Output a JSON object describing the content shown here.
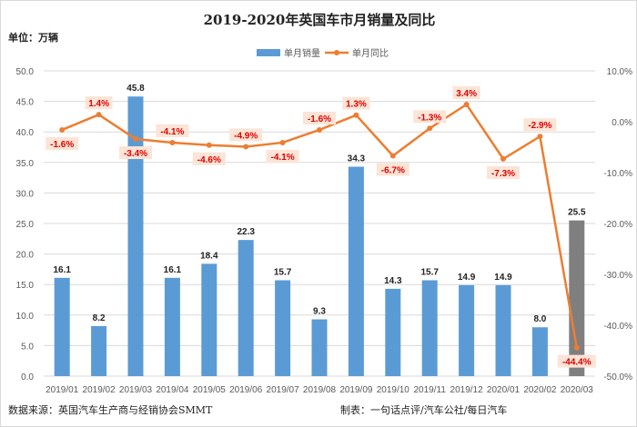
{
  "title": "2019-2020年英国车市月销量及同比",
  "unit_label": "单位：万辆",
  "source": "数据来源：英国汽车生产商与经销协会SMMT",
  "credit": "制表：一句话点评/汽车公社/每日汽车",
  "chart_data": {
    "type": "bar+line",
    "title": "2019-2020年英国车市月销量及同比",
    "categories": [
      "2019/01",
      "2019/02",
      "2019/03",
      "2019/04",
      "2019/05",
      "2019/06",
      "2019/07",
      "2019/08",
      "2019/09",
      "2019/10",
      "2019/11",
      "2019/12",
      "2020/01",
      "2020/02",
      "2020/03"
    ],
    "series": [
      {
        "name": "单月销量",
        "type": "bar",
        "axis": "left",
        "color": "#5b9bd5",
        "highlight_color": "#7f7f7f",
        "values": [
          16.1,
          8.2,
          45.8,
          16.1,
          18.4,
          22.3,
          15.7,
          9.3,
          34.3,
          14.3,
          15.7,
          14.9,
          14.9,
          8.0,
          25.5
        ]
      },
      {
        "name": "单月同比",
        "type": "line",
        "axis": "right",
        "color": "#ed7d31",
        "values": [
          -1.6,
          1.4,
          -3.4,
          -4.1,
          -4.6,
          -4.9,
          -4.1,
          -1.6,
          1.3,
          -6.7,
          -1.3,
          3.4,
          -7.3,
          -2.9,
          -44.4
        ]
      }
    ],
    "left_axis": {
      "ylim": [
        0,
        50
      ],
      "ticks": [
        "0.0",
        "5.0",
        "10.0",
        "15.0",
        "20.0",
        "25.0",
        "30.0",
        "35.0",
        "40.0",
        "45.0",
        "50.0"
      ]
    },
    "right_axis": {
      "ylim": [
        -50,
        10
      ],
      "ticks": [
        "-50.0%",
        "-40.0%",
        "-30.0%",
        "-20.0%",
        "-10.0%",
        "0.0%",
        "10.0%"
      ]
    },
    "grid": true,
    "legend": "top"
  }
}
